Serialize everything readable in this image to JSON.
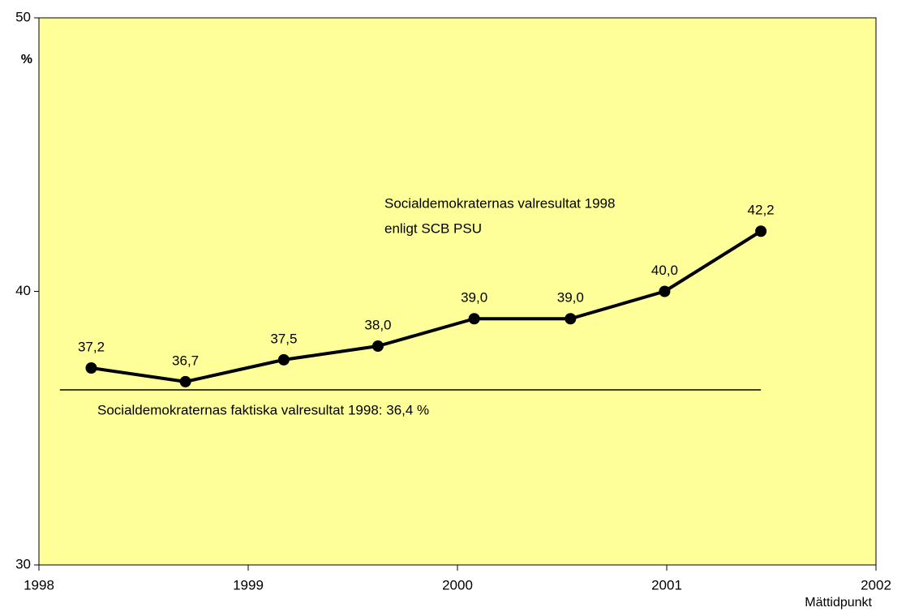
{
  "chart_data": {
    "type": "line",
    "y_label": "%",
    "x_label": "Mättidpunkt",
    "x": [
      1998.25,
      1998.7,
      1999.17,
      1999.62,
      2000.08,
      2000.54,
      2000.99,
      2001.45
    ],
    "values": [
      37.2,
      36.7,
      37.5,
      38.0,
      39.0,
      39.0,
      40.0,
      42.2
    ],
    "value_labels": [
      "37,2",
      "36,7",
      "37,5",
      "38,0",
      "39,0",
      "39,0",
      "40,0",
      "42,2"
    ],
    "color": "#000000",
    "background": "#ffff99",
    "xlim": [
      1998,
      2002
    ],
    "xticks": [
      1998,
      1999,
      2000,
      2001,
      2002
    ],
    "ylim": [
      30,
      50
    ],
    "yticks": [
      30,
      40,
      50
    ],
    "grid": false,
    "reference_line": {
      "value": 36.4,
      "x_range": [
        1998.1,
        2001.45
      ]
    },
    "series_note": [
      "Socialdemokraternas valresultat 1998",
      "enligt SCB PSU"
    ],
    "reference_note": "Socialdemokraternas faktiska valresultat 1998: 36,4 %"
  }
}
